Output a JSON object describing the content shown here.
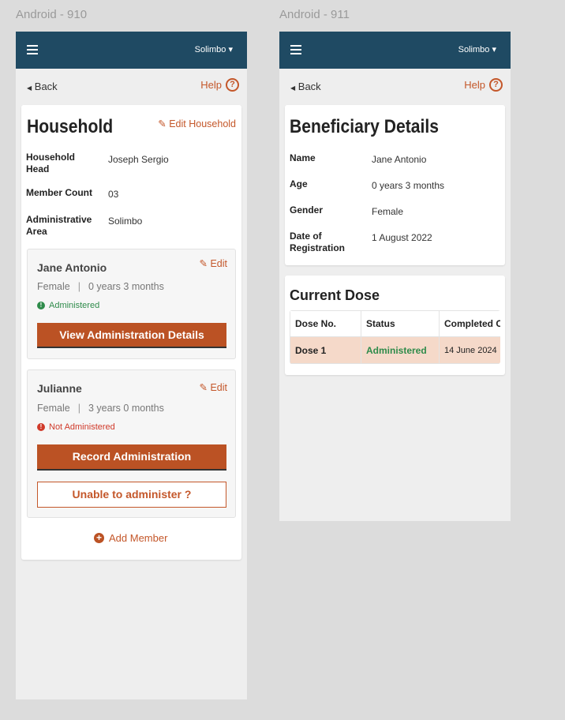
{
  "frames": {
    "left": "Android - 910",
    "right": "Android - 911"
  },
  "header": {
    "location": "Solimbo"
  },
  "nav": {
    "back": "Back",
    "help": "Help"
  },
  "household": {
    "title": "Household",
    "edit": "Edit Household",
    "fields": [
      {
        "label": "Household Head",
        "value": "Joseph Sergio"
      },
      {
        "label": "Member Count",
        "value": "03"
      },
      {
        "label": "Administrative Area",
        "value": "Solimbo"
      }
    ],
    "members": [
      {
        "name": "Jane Antonio",
        "edit": "Edit",
        "gender": "Female",
        "age": "0 years 3 months",
        "status": "Administered",
        "action": "View Administration Details"
      },
      {
        "name": "Julianne",
        "edit": "Edit",
        "gender": "Female",
        "age": "3 years 0 months",
        "status": "Not Administered",
        "action": "Record Administration",
        "secondary": "Unable to administer ?"
      }
    ],
    "add_member": "Add Member"
  },
  "beneficiary": {
    "title": "Beneficiary Details",
    "fields": [
      {
        "label": "Name",
        "value": "Jane Antonio"
      },
      {
        "label": "Age",
        "value": "0 years 3 months"
      },
      {
        "label": "Gender",
        "value": "Female"
      },
      {
        "label": "Date of Registration",
        "value": "1 August 2022"
      }
    ],
    "dose_title": "Current Dose",
    "columns": [
      "Dose No.",
      "Status",
      "Completed On"
    ],
    "rows": [
      {
        "dose": "Dose 1",
        "status": "Administered",
        "completed": "14 June 2024"
      }
    ]
  },
  "colors": {
    "header": "#1f4a63",
    "accent": "#bb5224",
    "success": "#2e8b4a",
    "error": "#d03a2a",
    "row_highlight": "#f5d9c9"
  }
}
